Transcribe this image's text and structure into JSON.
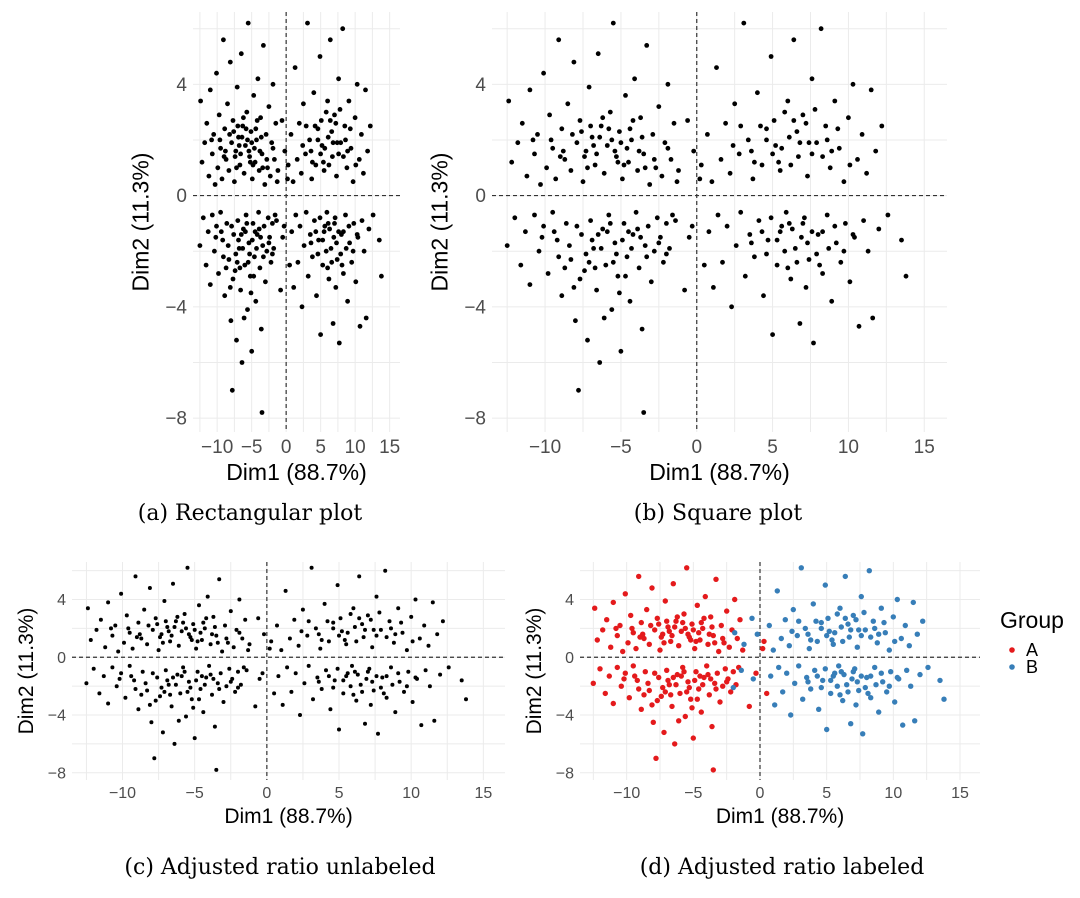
{
  "colors": {
    "A": "#e41a1c",
    "B": "#377eb8",
    "points": "#000000",
    "grid": "#ebebeb",
    "ref_line": "#333333"
  },
  "legend": {
    "title": "Group",
    "items": [
      "A",
      "B"
    ]
  },
  "chart_data": [
    {
      "type": "scatter",
      "caption": "(a) Rectangular plot",
      "xlabel": "Dim1 (88.7%)",
      "ylabel": "Dim2 (11.3%)",
      "xlim": [
        -13.5,
        16.5
      ],
      "ylim": [
        -8.5,
        6.6
      ],
      "xticks": [
        "-10",
        "-5",
        "0",
        "5",
        "10",
        "15"
      ],
      "xtick_values": [
        -10,
        -5,
        0,
        5,
        10,
        15
      ],
      "yticks": [
        "-8",
        "-4",
        "0",
        "4"
      ],
      "ytick_values": [
        -8,
        -4,
        0,
        4
      ],
      "grid": true,
      "colored": false,
      "ref_lines": [
        0,
        0
      ]
    },
    {
      "type": "scatter",
      "caption": "(b) Square plot",
      "xlabel": "Dim1 (88.7%)",
      "ylabel": "Dim2 (11.3%)",
      "xlim": [
        -13.5,
        16.5
      ],
      "ylim": [
        -8.5,
        6.6
      ],
      "xticks": [
        "-10",
        "-5",
        "0",
        "5",
        "10",
        "15"
      ],
      "xtick_values": [
        -10,
        -5,
        0,
        5,
        10,
        15
      ],
      "yticks": [
        "-8",
        "-4",
        "0",
        "4"
      ],
      "ytick_values": [
        -8,
        -4,
        0,
        4
      ],
      "grid": true,
      "colored": false,
      "ref_lines": [
        0,
        0
      ]
    },
    {
      "type": "scatter",
      "caption": "(c) Adjusted ratio unlabeled",
      "xlabel": "Dim1 (88.7%)",
      "ylabel": "Dim2 (11.3%)",
      "xlim": [
        -13.5,
        16.5
      ],
      "ylim": [
        -8.5,
        6.6
      ],
      "xticks": [
        "-10",
        "-5",
        "0",
        "5",
        "10",
        "15"
      ],
      "xtick_values": [
        -10,
        -5,
        0,
        5,
        10,
        15
      ],
      "yticks": [
        "-8",
        "-4",
        "0",
        "4"
      ],
      "ytick_values": [
        -8,
        -4,
        0,
        4
      ],
      "grid": true,
      "colored": false,
      "ref_lines": [
        0,
        0
      ]
    },
    {
      "type": "scatter",
      "caption": "(d) Adjusted ratio labeled",
      "xlabel": "Dim1 (88.7%)",
      "ylabel": "Dim2 (11.3%)",
      "xlim": [
        -13.5,
        16.5
      ],
      "ylim": [
        -8.5,
        6.6
      ],
      "xticks": [
        "-10",
        "-5",
        "0",
        "5",
        "10",
        "15"
      ],
      "xtick_values": [
        -10,
        -5,
        0,
        5,
        10,
        15
      ],
      "yticks": [
        "-8",
        "-4",
        "0",
        "4"
      ],
      "ytick_values": [
        -8,
        -4,
        0,
        4
      ],
      "grid": true,
      "colored": true,
      "ref_lines": [
        0,
        0
      ],
      "legend": "right"
    }
  ],
  "points": {
    "A": [
      [
        -12.4,
        3.4
      ],
      [
        -12.2,
        1.2
      ],
      [
        -11.8,
        1.9
      ],
      [
        -11.5,
        2.6
      ],
      [
        -11.2,
        0.7
      ],
      [
        -11.0,
        3.8
      ],
      [
        -10.7,
        1.5
      ],
      [
        -10.5,
        2.2
      ],
      [
        -10.3,
        0.4
      ],
      [
        -10.1,
        4.4
      ],
      [
        -9.9,
        1.0
      ],
      [
        -9.7,
        2.9
      ],
      [
        -9.5,
        1.7
      ],
      [
        -9.3,
        0.6
      ],
      [
        -9.1,
        5.6
      ],
      [
        -8.9,
        2.4
      ],
      [
        -8.7,
        1.3
      ],
      [
        -8.5,
        3.3
      ],
      [
        -8.3,
        0.9
      ],
      [
        -8.1,
        4.8
      ],
      [
        -7.9,
        1.9
      ],
      [
        -7.7,
        2.7
      ],
      [
        -7.5,
        0.5
      ],
      [
        -7.3,
        1.6
      ],
      [
        -7.1,
        3.9
      ],
      [
        -6.9,
        2.1
      ],
      [
        -6.7,
        1.1
      ],
      [
        -6.5,
        5.1
      ],
      [
        -6.3,
        2.5
      ],
      [
        -6.1,
        0.8
      ],
      [
        -5.9,
        1.8
      ],
      [
        -5.7,
        3.0
      ],
      [
        -5.5,
        6.2
      ],
      [
        -5.3,
        1.4
      ],
      [
        -5.1,
        2.3
      ],
      [
        -4.9,
        0.6
      ],
      [
        -4.7,
        3.6
      ],
      [
        -4.5,
        1.2
      ],
      [
        -4.3,
        2.0
      ],
      [
        -4.1,
        4.2
      ],
      [
        -3.9,
        0.9
      ],
      [
        -3.7,
        2.8
      ],
      [
        -3.5,
        1.5
      ],
      [
        -3.3,
        5.4
      ],
      [
        -3.1,
        0.4
      ],
      [
        -2.9,
        2.2
      ],
      [
        -2.7,
        1.0
      ],
      [
        -2.5,
        3.2
      ],
      [
        -2.3,
        0.7
      ],
      [
        -2.1,
        1.9
      ],
      [
        -1.9,
        4.0
      ],
      [
        -1.7,
        1.3
      ],
      [
        -1.5,
        2.6
      ],
      [
        -1.3,
        0.5
      ],
      [
        -8.8,
        1.6
      ],
      [
        -7.6,
        2.3
      ],
      [
        -6.6,
        1.5
      ],
      [
        -5.6,
        2.0
      ],
      [
        -4.6,
        1.7
      ],
      [
        -3.6,
        2.1
      ],
      [
        -7.2,
        1.0
      ],
      [
        -6.2,
        2.8
      ],
      [
        -5.2,
        1.2
      ],
      [
        -4.2,
        2.7
      ],
      [
        -8.2,
        2.2
      ],
      [
        -6.8,
        1.8
      ],
      [
        -5.8,
        2.4
      ],
      [
        -4.8,
        1.1
      ],
      [
        -3.8,
        1.6
      ],
      [
        -2.8,
        1.3
      ],
      [
        -9.6,
        2.0
      ],
      [
        -7.4,
        1.4
      ],
      [
        -6.4,
        2.1
      ],
      [
        -5.4,
        1.6
      ],
      [
        -4.4,
        2.4
      ],
      [
        -3.4,
        1.0
      ],
      [
        -10.8,
        2.0
      ],
      [
        -9.0,
        1.4
      ],
      [
        -7.0,
        2.5
      ],
      [
        -5.0,
        1.9
      ],
      [
        -12.5,
        -1.8
      ],
      [
        -12.0,
        -0.8
      ],
      [
        -11.6,
        -2.5
      ],
      [
        -11.3,
        -1.3
      ],
      [
        -11.0,
        -3.2
      ],
      [
        -10.7,
        -0.7
      ],
      [
        -10.4,
        -2.0
      ],
      [
        -10.1,
        -1.1
      ],
      [
        -9.8,
        -2.8
      ],
      [
        -9.5,
        -0.6
      ],
      [
        -9.2,
        -1.6
      ],
      [
        -8.9,
        -3.6
      ],
      [
        -8.6,
        -1.0
      ],
      [
        -8.3,
        -2.3
      ],
      [
        -8.0,
        -4.5
      ],
      [
        -7.8,
        -7.0
      ],
      [
        -7.6,
        -1.4
      ],
      [
        -7.4,
        -2.7
      ],
      [
        -7.2,
        -5.2
      ],
      [
        -7.0,
        -0.9
      ],
      [
        -6.8,
        -1.9
      ],
      [
        -6.6,
        -3.4
      ],
      [
        -6.4,
        -6.0
      ],
      [
        -6.2,
        -1.2
      ],
      [
        -6.0,
        -2.5
      ],
      [
        -5.8,
        -0.7
      ],
      [
        -5.6,
        -4.1
      ],
      [
        -5.4,
        -1.7
      ],
      [
        -5.2,
        -2.9
      ],
      [
        -5.0,
        -5.6
      ],
      [
        -4.8,
        -1.0
      ],
      [
        -4.6,
        -2.2
      ],
      [
        -4.4,
        -3.8
      ],
      [
        -4.2,
        -1.4
      ],
      [
        -4.0,
        -0.6
      ],
      [
        -3.8,
        -2.6
      ],
      [
        -3.6,
        -4.8
      ],
      [
        -3.4,
        -1.8
      ],
      [
        -3.2,
        -1.1
      ],
      [
        -3.0,
        -3.1
      ],
      [
        -2.8,
        -2.0
      ],
      [
        -2.6,
        -0.8
      ],
      [
        -2.4,
        -1.5
      ],
      [
        -2.2,
        -2.4
      ],
      [
        -2.0,
        -1.0
      ],
      [
        -1.8,
        -1.9
      ],
      [
        -1.6,
        -0.7
      ],
      [
        -3.5,
        -7.8
      ],
      [
        -6.9,
        -1.6
      ],
      [
        -5.9,
        -1.3
      ],
      [
        -4.9,
        -1.6
      ],
      [
        -3.9,
        -1.2
      ],
      [
        -8.4,
        -1.8
      ],
      [
        -7.3,
        -2.1
      ],
      [
        -6.3,
        -1.9
      ],
      [
        -5.3,
        -2.1
      ],
      [
        -4.3,
        -1.9
      ],
      [
        -9.1,
        -2.2
      ],
      [
        -7.9,
        -1.1
      ],
      [
        -6.7,
        -2.6
      ],
      [
        -5.7,
        -1.0
      ],
      [
        -4.7,
        -2.9
      ],
      [
        -3.7,
        -1.5
      ],
      [
        -10.2,
        -1.5
      ],
      [
        -8.7,
        -2.6
      ],
      [
        -7.7,
        -3.0
      ],
      [
        -6.5,
        -1.4
      ],
      [
        -5.5,
        -2.4
      ],
      [
        -4.5,
        -1.3
      ],
      [
        -3.3,
        -2.2
      ],
      [
        -2.5,
        -1.7
      ],
      [
        -8.1,
        -3.3
      ],
      [
        -6.1,
        -4.4
      ],
      [
        -5.1,
        -3.5
      ],
      [
        -7.1,
        -2.4
      ],
      [
        -9.4,
        -1.3
      ],
      [
        -0.8,
        -3.4
      ],
      [
        -0.3,
        -1.1
      ],
      [
        0.2,
        0.6
      ],
      [
        0.5,
        -2.5
      ],
      [
        0.3,
        1.1
      ]
    ],
    "B": [
      [
        -1.9,
        1.7
      ],
      [
        -1.2,
        0.9
      ],
      [
        -0.6,
        2.7
      ],
      [
        -0.2,
        1.6
      ],
      [
        0.7,
        2.2
      ],
      [
        1.0,
        0.5
      ],
      [
        1.3,
        4.6
      ],
      [
        1.6,
        1.3
      ],
      [
        1.9,
        2.6
      ],
      [
        2.2,
        0.8
      ],
      [
        2.5,
        3.3
      ],
      [
        2.8,
        1.5
      ],
      [
        3.1,
        6.2
      ],
      [
        3.4,
        2.0
      ],
      [
        3.7,
        0.6
      ],
      [
        4.0,
        3.7
      ],
      [
        4.3,
        1.1
      ],
      [
        4.6,
        2.4
      ],
      [
        4.9,
        5.0
      ],
      [
        5.2,
        1.8
      ],
      [
        5.5,
        0.9
      ],
      [
        5.8,
        3.0
      ],
      [
        6.1,
        2.1
      ],
      [
        6.4,
        5.6
      ],
      [
        6.7,
        1.4
      ],
      [
        7.0,
        2.9
      ],
      [
        7.3,
        0.7
      ],
      [
        7.6,
        4.2
      ],
      [
        7.9,
        1.9
      ],
      [
        8.2,
        6.0
      ],
      [
        8.5,
        2.5
      ],
      [
        8.8,
        1.0
      ],
      [
        9.1,
        3.4
      ],
      [
        9.4,
        1.7
      ],
      [
        9.7,
        0.5
      ],
      [
        10.0,
        2.8
      ],
      [
        10.3,
        4.0
      ],
      [
        10.6,
        1.3
      ],
      [
        10.9,
        2.2
      ],
      [
        11.2,
        0.8
      ],
      [
        11.5,
        3.8
      ],
      [
        11.8,
        1.6
      ],
      [
        12.2,
        2.5
      ],
      [
        3.6,
        1.6
      ],
      [
        4.6,
        2.0
      ],
      [
        5.6,
        1.7
      ],
      [
        6.6,
        2.3
      ],
      [
        7.6,
        1.5
      ],
      [
        8.6,
        2.0
      ],
      [
        5.1,
        2.7
      ],
      [
        6.2,
        1.1
      ],
      [
        7.2,
        2.6
      ],
      [
        8.3,
        1.4
      ],
      [
        4.2,
        2.5
      ],
      [
        6.0,
        3.4
      ],
      [
        7.8,
        3.1
      ],
      [
        5.4,
        1.2
      ],
      [
        6.8,
        1.9
      ],
      [
        9.3,
        2.4
      ],
      [
        2.9,
        2.5
      ],
      [
        3.8,
        1.2
      ],
      [
        8.9,
        1.6
      ],
      [
        6.4,
        2.7
      ],
      [
        5.0,
        1.5
      ],
      [
        7.4,
        1.9
      ],
      [
        10.1,
        1.1
      ],
      [
        2.4,
        1.8
      ],
      [
        -2.0,
        -2.1
      ],
      [
        -1.4,
        -0.9
      ],
      [
        -0.5,
        -1.5
      ],
      [
        0.8,
        -1.3
      ],
      [
        1.1,
        -3.3
      ],
      [
        1.4,
        -0.7
      ],
      [
        1.7,
        -2.4
      ],
      [
        2.0,
        -1.1
      ],
      [
        2.3,
        -4.0
      ],
      [
        2.6,
        -1.8
      ],
      [
        2.9,
        -0.6
      ],
      [
        3.2,
        -2.9
      ],
      [
        3.5,
        -1.4
      ],
      [
        3.8,
        -2.2
      ],
      [
        4.1,
        -0.9
      ],
      [
        4.4,
        -3.6
      ],
      [
        4.7,
        -1.6
      ],
      [
        5.0,
        -5.0
      ],
      [
        5.3,
        -2.5
      ],
      [
        5.6,
        -1.1
      ],
      [
        5.9,
        -0.6
      ],
      [
        6.2,
        -3.0
      ],
      [
        6.5,
        -1.9
      ],
      [
        6.8,
        -4.6
      ],
      [
        7.1,
        -0.8
      ],
      [
        7.4,
        -2.3
      ],
      [
        7.7,
        -5.3
      ],
      [
        8.0,
        -1.4
      ],
      [
        8.3,
        -2.8
      ],
      [
        8.6,
        -0.7
      ],
      [
        8.9,
        -3.8
      ],
      [
        9.2,
        -1.7
      ],
      [
        9.5,
        -2.4
      ],
      [
        9.8,
        -1.0
      ],
      [
        10.1,
        -3.1
      ],
      [
        10.4,
        -1.5
      ],
      [
        10.7,
        -4.7
      ],
      [
        11.0,
        -0.9
      ],
      [
        11.3,
        -2.0
      ],
      [
        11.6,
        -4.4
      ],
      [
        12.0,
        -1.2
      ],
      [
        12.6,
        -0.7
      ],
      [
        13.5,
        -1.6
      ],
      [
        13.8,
        -2.9
      ],
      [
        4.3,
        -1.3
      ],
      [
        5.3,
        -1.6
      ],
      [
        6.3,
        -1.2
      ],
      [
        7.3,
        -1.7
      ],
      [
        8.3,
        -1.3
      ],
      [
        5.8,
        -2.0
      ],
      [
        6.9,
        -1.5
      ],
      [
        7.9,
        -2.1
      ],
      [
        4.9,
        -0.8
      ],
      [
        6.0,
        -2.6
      ],
      [
        7.0,
        -1.0
      ],
      [
        8.1,
        -2.5
      ],
      [
        9.1,
        -1.1
      ],
      [
        5.5,
        -1.3
      ],
      [
        6.6,
        -2.4
      ],
      [
        7.6,
        -1.3
      ],
      [
        8.7,
        -1.9
      ],
      [
        3.6,
        -1.7
      ],
      [
        4.6,
        -2.1
      ],
      [
        9.7,
        -2.0
      ],
      [
        10.3,
        -1.4
      ],
      [
        6.1,
        -1.0
      ],
      [
        7.2,
        -3.3
      ]
    ]
  },
  "panels": [
    {
      "caption": "(a) Rectangular plot"
    },
    {
      "caption": "(b) Square plot"
    },
    {
      "caption": "(c) Adjusted ratio unlabeled"
    },
    {
      "caption": "(d) Adjusted ratio labeled"
    }
  ]
}
